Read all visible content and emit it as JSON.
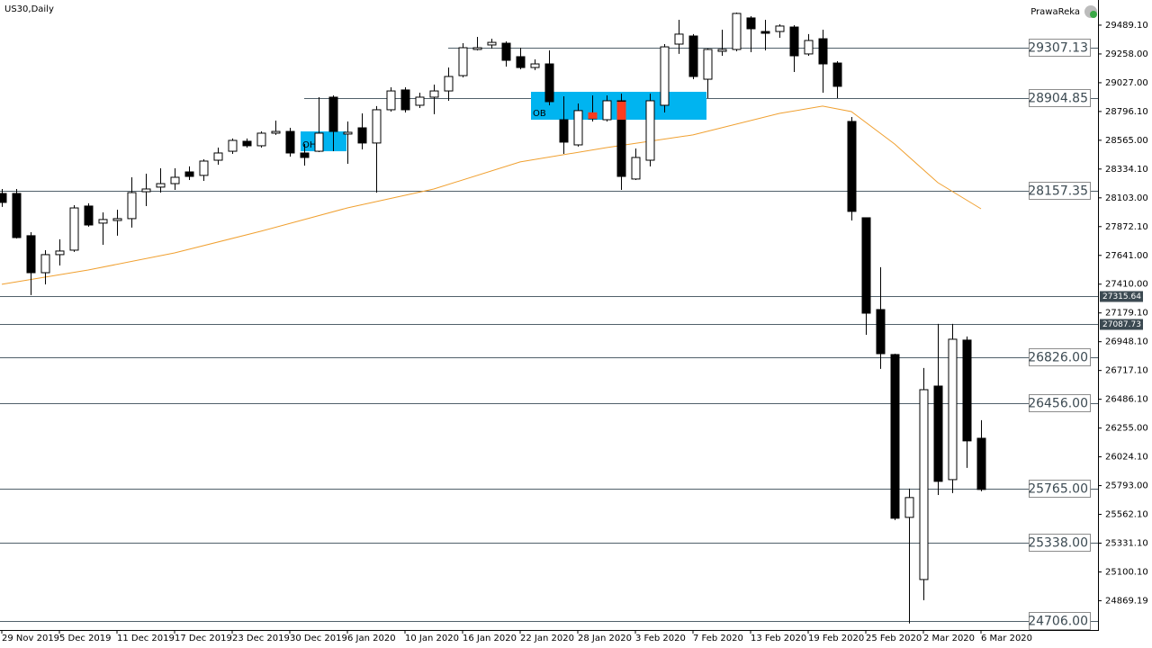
{
  "chart_data": {
    "type": "candlestick",
    "title": "US30,Daily",
    "watermark": "PrawaReka",
    "categories": [
      "29 Nov 2019",
      null,
      null,
      null,
      "5 Dec 2019",
      null,
      null,
      null,
      "11 Dec 2019",
      null,
      null,
      null,
      "17 Dec 2019",
      null,
      null,
      null,
      "23 Dec 2019",
      null,
      null,
      null,
      "30 Dec 2019",
      null,
      null,
      null,
      "6 Jan 2020",
      null,
      null,
      null,
      "10 Jan 2020",
      null,
      null,
      null,
      "16 Jan 2020",
      null,
      null,
      null,
      "22 Jan 2020",
      null,
      null,
      null,
      "28 Jan 2020",
      null,
      null,
      null,
      "3 Feb 2020",
      null,
      null,
      null,
      "7 Feb 2020",
      null,
      null,
      null,
      "13 Feb 2020",
      null,
      null,
      null,
      "19 Feb 2020",
      null,
      null,
      null,
      "25 Feb 2020",
      null,
      null,
      null,
      "2 Mar 2020",
      null,
      null,
      null,
      "6 Mar 2020"
    ],
    "open": [
      28138,
      28138,
      27799,
      27502,
      27647,
      27683,
      28037,
      27900,
      27921,
      27936,
      28152,
      28189,
      28217,
      28311,
      28283,
      28405,
      28477,
      28557,
      28521,
      28622,
      28636,
      28463,
      28477,
      28911,
      28615,
      28665,
      28543,
      28810,
      28969,
      28846,
      28911,
      28961,
      29084,
      29294,
      29330,
      29344,
      29236,
      29149,
      29178,
      28730,
      28528,
      28738,
      28730,
      28882,
      28254,
      28405,
      28846,
      29337,
      29402,
      29055,
      29279,
      29294,
      29547,
      29438,
      29438,
      29474,
      29258,
      29380,
      29185,
      28716,
      27943,
      27206,
      26845,
      25538,
      25039,
      26592,
      25841,
      26961,
      26173
    ],
    "high": [
      28174,
      28174,
      27827,
      27683,
      27770,
      28044,
      28059,
      27986,
      28008,
      28268,
      28297,
      28340,
      28340,
      28355,
      28412,
      28506,
      28579,
      28579,
      28636,
      28723,
      28665,
      28535,
      28911,
      28925,
      28716,
      28781,
      28839,
      28990,
      28990,
      28947,
      29012,
      29149,
      29344,
      29395,
      29380,
      29359,
      29308,
      29214,
      29286,
      28918,
      28860,
      28925,
      28925,
      28940,
      28499,
      28940,
      29337,
      29532,
      29417,
      29301,
      29453,
      29590,
      29561,
      29532,
      29496,
      29489,
      29417,
      29453,
      29200,
      28752,
      27943,
      27546,
      26852,
      25769,
      26737,
      27091,
      27091,
      26990,
      26318
    ],
    "low": [
      28030,
      27777,
      27322,
      27408,
      27560,
      27669,
      27871,
      27726,
      27799,
      27864,
      28037,
      28145,
      28167,
      28246,
      28239,
      28369,
      28456,
      28506,
      28506,
      28608,
      28434,
      28362,
      28470,
      28477,
      28376,
      28492,
      28145,
      28795,
      28788,
      28824,
      28774,
      28882,
      29070,
      29286,
      29301,
      29156,
      29135,
      29128,
      28846,
      28456,
      28514,
      28716,
      28716,
      28167,
      28246,
      28355,
      28788,
      29258,
      29055,
      28904,
      29243,
      29279,
      29272,
      29286,
      29388,
      29113,
      29243,
      28947,
      28904,
      27921,
      27004,
      26730,
      25516,
      24686,
      24873,
      25718,
      25733,
      25935,
      25747
    ],
    "close": [
      28066,
      27784,
      27502,
      27647,
      27676,
      28022,
      27885,
      27929,
      27936,
      28145,
      28174,
      28217,
      28268,
      28275,
      28398,
      28463,
      28564,
      28521,
      28622,
      28636,
      28463,
      28427,
      28622,
      28636,
      28629,
      28543,
      28810,
      28961,
      28810,
      28911,
      28961,
      29077,
      29308,
      29308,
      29351,
      29207,
      29149,
      29178,
      28875,
      28550,
      28803,
      28781,
      28882,
      28275,
      28427,
      28882,
      29315,
      29417,
      29077,
      29294,
      29294,
      29583,
      29460,
      29424,
      29482,
      29243,
      29366,
      29178,
      28998,
      27994,
      27177,
      26852,
      25531,
      25697,
      26563,
      25827,
      26968,
      26152,
      25762
    ],
    "up_color": "#ffffff",
    "down_color": "#000000",
    "moving_average": {
      "color": "#f0a030",
      "x": [
        0,
        6,
        12,
        18,
        24,
        30,
        36,
        42,
        48,
        54,
        57,
        59,
        62,
        65,
        68
      ],
      "values": [
        27409,
        27524,
        27661,
        27835,
        28022,
        28174,
        28391,
        28506,
        28608,
        28781,
        28839,
        28795,
        28535,
        28225,
        28015
      ]
    },
    "zones": [
      {
        "label": "OH",
        "x": [
          21,
          23
        ],
        "range": [
          28477,
          28636
        ],
        "color": "#00b4f0"
      },
      {
        "label": "OB",
        "x": [
          37,
          48
        ],
        "range": [
          28730,
          28954
        ],
        "color": "#00b4f0"
      }
    ],
    "markers": [
      {
        "x": 41,
        "range": [
          28738,
          28789
        ],
        "color": "#ff3c1e"
      },
      {
        "x": 43,
        "range": [
          28730,
          28875
        ],
        "color": "#ff3c1e"
      }
    ],
    "levels": [
      29307.13,
      28904.85,
      28157.35,
      {
        "value": 26826,
        "label": "26826.00"
      },
      {
        "value": 26456,
        "label": "26456.00"
      },
      {
        "value": 25765,
        "label": "25765.00"
      },
      {
        "value": 25338,
        "label": "25338.00"
      },
      {
        "value": 24706,
        "label": "24706.00"
      }
    ],
    "axis_levels": [
      27315.64,
      27087.73
    ],
    "ylim": [
      24634,
      29691
    ],
    "yticks": [
      {
        "value": 29489.1,
        "label": "29489.10"
      },
      {
        "value": 29258,
        "label": "29258.00"
      },
      {
        "value": 29027,
        "label": "29027.00"
      },
      {
        "value": 28796.1,
        "label": "28796.10"
      },
      {
        "value": 28565,
        "label": "28565.00"
      },
      {
        "value": 28334.1,
        "label": "28334.10"
      },
      {
        "value": 28103,
        "label": "28103.00"
      },
      {
        "value": 27872.1,
        "label": "27872.10"
      },
      {
        "value": 27641,
        "label": "27641.00"
      },
      {
        "value": 27410,
        "label": "27410.00"
      },
      {
        "value": 27179.1,
        "label": "27179.10"
      },
      {
        "value": 26948.1,
        "label": "26948.10"
      },
      {
        "value": 26717.1,
        "label": "26717.10"
      },
      {
        "value": 26486.1,
        "label": "26486.10"
      },
      {
        "value": 26255,
        "label": "26255.00"
      },
      {
        "value": 26024.1,
        "label": "26024.10"
      },
      {
        "value": 25793,
        "label": "25793.00"
      },
      {
        "value": 25562.1,
        "label": "25562.10"
      },
      {
        "value": 25331.1,
        "label": "25331.10"
      },
      {
        "value": 25100.1,
        "label": "25100.10"
      },
      {
        "value": 24869.19,
        "label": "24869.19"
      }
    ]
  }
}
